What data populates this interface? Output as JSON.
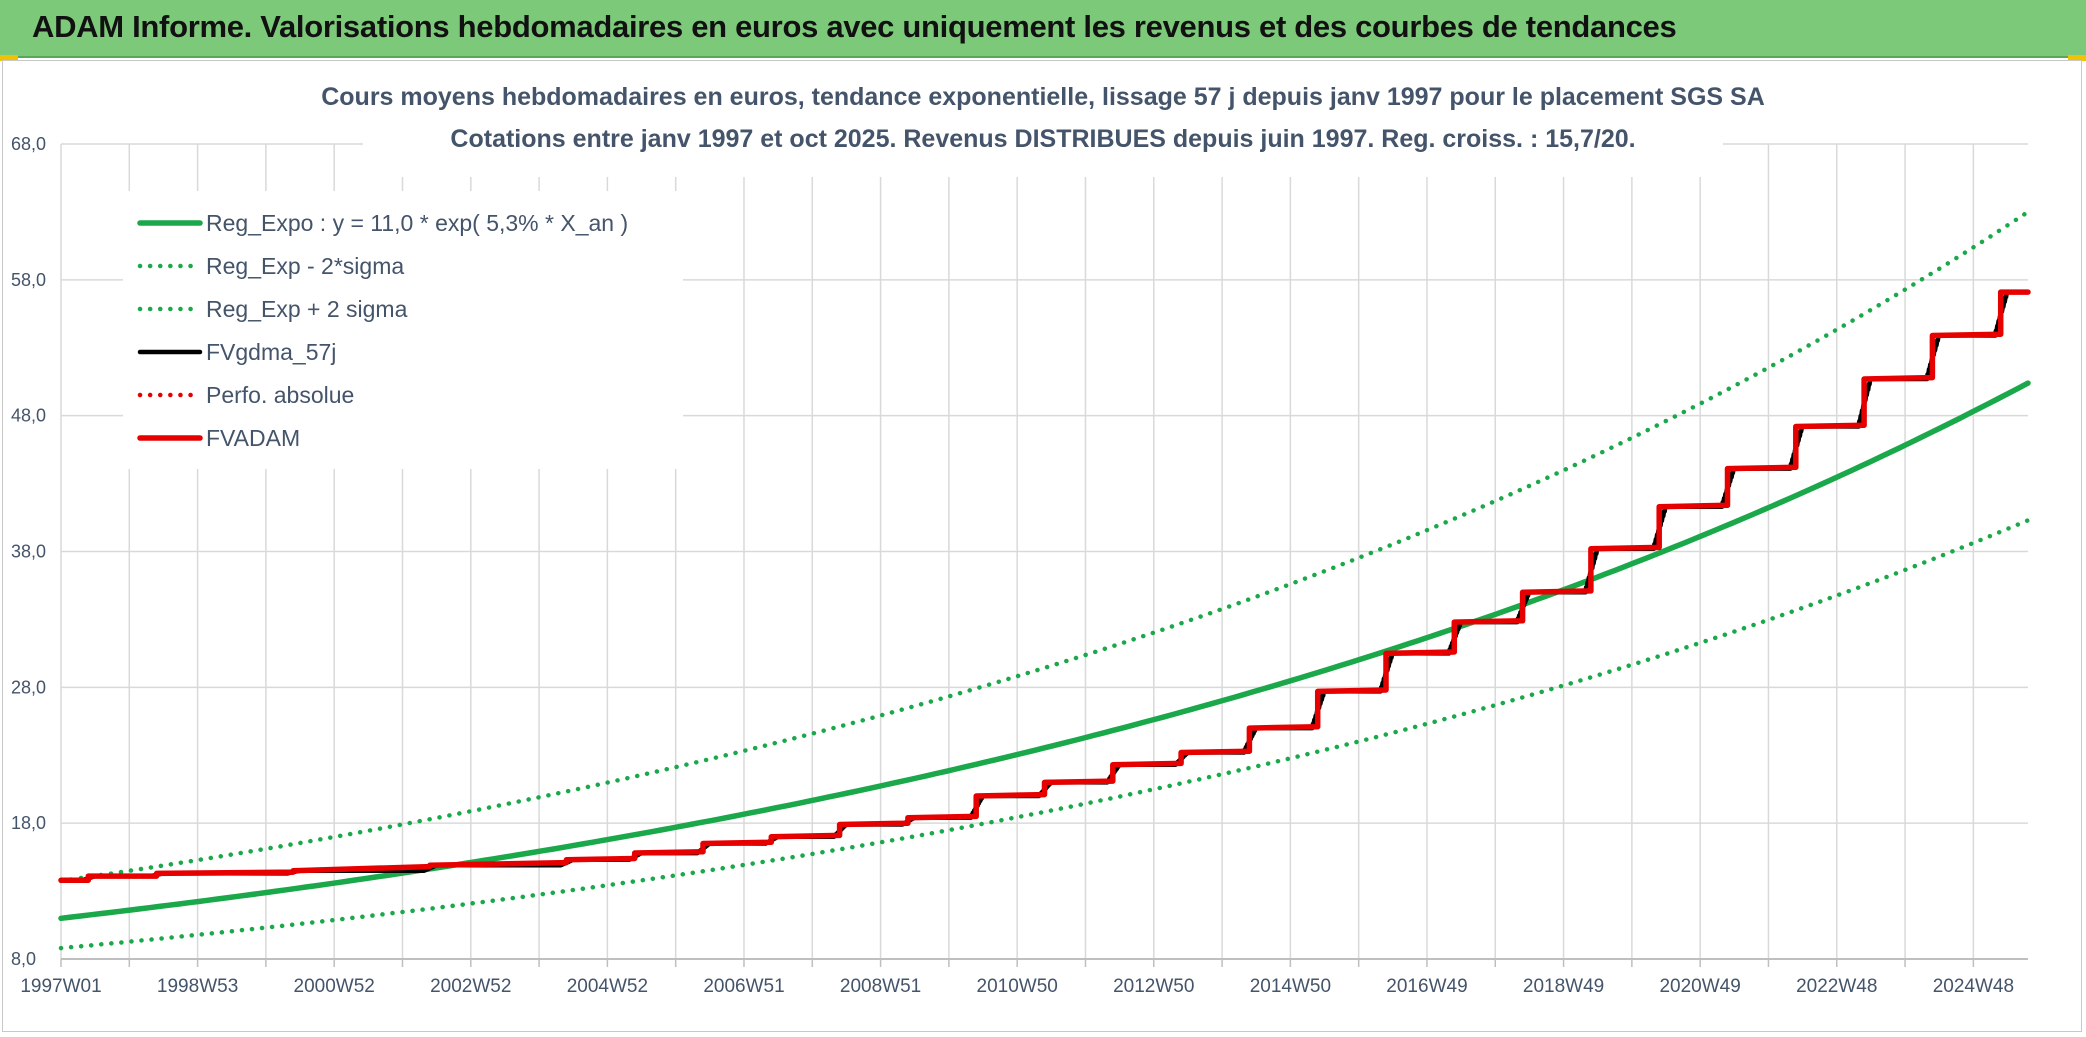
{
  "header": {
    "title": "ADAM Informe. Valorisations hebdomadaires en euros avec uniquement les revenus et des courbes de tendances"
  },
  "colors": {
    "banner": "#7dc97a",
    "green": "#1aa84a",
    "black": "#000000",
    "red": "#e60000",
    "grid": "#d9d9d9",
    "text": "#44546a"
  },
  "chart_data": {
    "type": "line",
    "title_lines": [
      "Cours moyens hebdomadaires en euros, tendance exponentielle, lissage 57 j depuis janv 1997 pour le placement SGS SA",
      "Cotations entre janv 1997 et oct 2025. Revenus DISTRIBUES depuis juin 1997. Reg. croiss. : 15,7/20."
    ],
    "ylim": [
      8,
      68
    ],
    "y_ticks": [
      "8,0",
      "18,0",
      "28,0",
      "38,0",
      "48,0",
      "58,0",
      "68,0"
    ],
    "x_range": [
      1997.0,
      2025.8
    ],
    "x_ticks": [
      {
        "x": 1997.0,
        "label": "1997W01"
      },
      {
        "x": 1999.0,
        "label": "1998W53"
      },
      {
        "x": 2001.0,
        "label": "2000W52"
      },
      {
        "x": 2003.0,
        "label": "2002W52"
      },
      {
        "x": 2005.0,
        "label": "2004W52"
      },
      {
        "x": 2007.0,
        "label": "2006W51"
      },
      {
        "x": 2009.0,
        "label": "2008W51"
      },
      {
        "x": 2011.0,
        "label": "2010W50"
      },
      {
        "x": 2013.0,
        "label": "2012W50"
      },
      {
        "x": 2015.0,
        "label": "2014W50"
      },
      {
        "x": 2017.0,
        "label": "2016W49"
      },
      {
        "x": 2019.0,
        "label": "2018W49"
      },
      {
        "x": 2021.0,
        "label": "2020W49"
      },
      {
        "x": 2023.0,
        "label": "2022W48"
      },
      {
        "x": 2025.0,
        "label": "2024W48"
      }
    ],
    "legend_position": "top-left",
    "series": [
      {
        "name": "Reg_Expo : y = 11,0 * exp( 5,3% *  X_an )",
        "style": "solid-thick",
        "color": "#1aa84a",
        "points": [
          [
            1997.0,
            11.0
          ],
          [
            2025.8,
            50.4
          ]
        ]
      },
      {
        "name": "Reg_Exp - 2*sigma",
        "style": "dotted",
        "color": "#1aa84a",
        "points": [
          [
            1997.0,
            8.8
          ],
          [
            2025.8,
            40.3
          ]
        ]
      },
      {
        "name": "Reg_Exp + 2 sigma",
        "style": "dotted",
        "color": "#1aa84a",
        "points": [
          [
            1997.0,
            13.75
          ],
          [
            2025.8,
            63.0
          ]
        ]
      },
      {
        "name": "FVgdma_57j",
        "style": "solid",
        "color": "#000000",
        "points": []
      },
      {
        "name": "Perfo. absolue",
        "style": "dotted",
        "color": "#e60000",
        "points": []
      },
      {
        "name": "FVADAM",
        "style": "solid-thick",
        "color": "#e60000",
        "points": [
          [
            1997.0,
            13.8
          ],
          [
            1997.4,
            13.8
          ],
          [
            1997.4,
            14.1
          ],
          [
            1998.4,
            14.1
          ],
          [
            1998.4,
            14.3
          ],
          [
            2000.4,
            14.4
          ],
          [
            2000.4,
            14.5
          ],
          [
            2002.4,
            14.8
          ],
          [
            2002.4,
            14.9
          ],
          [
            2004.4,
            15.1
          ],
          [
            2004.4,
            15.3
          ],
          [
            2005.4,
            15.4
          ],
          [
            2005.4,
            15.8
          ],
          [
            2006.4,
            15.9
          ],
          [
            2006.4,
            16.5
          ],
          [
            2007.4,
            16.6
          ],
          [
            2007.4,
            17.0
          ],
          [
            2008.4,
            17.1
          ],
          [
            2008.4,
            17.9
          ],
          [
            2009.4,
            18.0
          ],
          [
            2009.4,
            18.4
          ],
          [
            2010.4,
            18.5
          ],
          [
            2010.4,
            20.0
          ],
          [
            2011.4,
            20.1
          ],
          [
            2011.4,
            21.0
          ],
          [
            2012.4,
            21.1
          ],
          [
            2012.4,
            22.3
          ],
          [
            2013.4,
            22.4
          ],
          [
            2013.4,
            23.2
          ],
          [
            2014.4,
            23.3
          ],
          [
            2014.4,
            25.0
          ],
          [
            2015.4,
            25.1
          ],
          [
            2015.4,
            27.7
          ],
          [
            2016.4,
            27.8
          ],
          [
            2016.4,
            30.5
          ],
          [
            2017.4,
            30.6
          ],
          [
            2017.4,
            32.8
          ],
          [
            2018.4,
            32.9
          ],
          [
            2018.4,
            35.0
          ],
          [
            2019.4,
            35.1
          ],
          [
            2019.4,
            38.2
          ],
          [
            2020.4,
            38.3
          ],
          [
            2020.4,
            41.3
          ],
          [
            2021.4,
            41.4
          ],
          [
            2021.4,
            44.1
          ],
          [
            2022.4,
            44.2
          ],
          [
            2022.4,
            47.2
          ],
          [
            2023.4,
            47.3
          ],
          [
            2023.4,
            50.7
          ],
          [
            2024.4,
            50.8
          ],
          [
            2024.4,
            53.9
          ],
          [
            2025.4,
            54.0
          ],
          [
            2025.4,
            57.1
          ],
          [
            2025.8,
            57.1
          ]
        ]
      }
    ]
  }
}
